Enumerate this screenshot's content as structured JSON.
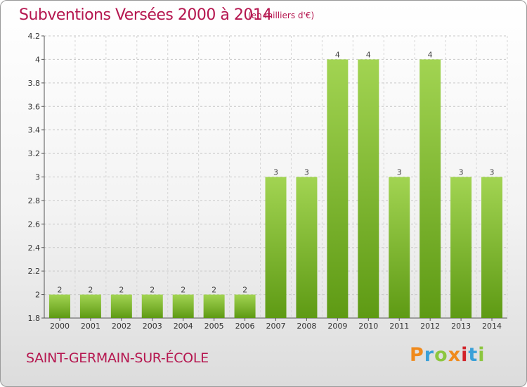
{
  "chart_data": {
    "type": "bar",
    "title": "Subventions Versées 2000 à 2014",
    "subtitle": "(en milliers d'€)",
    "categories": [
      "2000",
      "2001",
      "2002",
      "2003",
      "2004",
      "2005",
      "2006",
      "2007",
      "2008",
      "2009",
      "2010",
      "2011",
      "2012",
      "2013",
      "2014"
    ],
    "values": [
      2,
      2,
      2,
      2,
      2,
      2,
      2,
      3,
      3,
      4,
      4,
      3,
      4,
      3,
      3
    ],
    "value_labels": [
      "2",
      "2",
      "2",
      "2",
      "2",
      "2",
      "2",
      "3",
      "3",
      "4",
      "4",
      "3",
      "4",
      "3",
      "3"
    ],
    "y_ticks": [
      1.8,
      2,
      2.2,
      2.4,
      2.6,
      2.8,
      3,
      3.2,
      3.4,
      3.6,
      3.8,
      4,
      4.2
    ],
    "y_tick_labels": [
      "1.8",
      "2",
      "2.2",
      "2.4",
      "2.6",
      "2.8",
      "3",
      "3.2",
      "3.4",
      "3.6",
      "3.8",
      "4",
      "4.2"
    ],
    "ylim": [
      1.8,
      4.2
    ],
    "grid": true,
    "legend": "none",
    "colors": {
      "bar_top": "#9fd14e",
      "bar_bottom": "#5e9a14",
      "title": "#b5164f"
    }
  },
  "footer": {
    "commune": "SAINT-GERMAIN-SUR-ÉCOLE",
    "brand_letters": [
      "P",
      "r",
      "o",
      "x",
      "i",
      "t",
      "i"
    ]
  }
}
